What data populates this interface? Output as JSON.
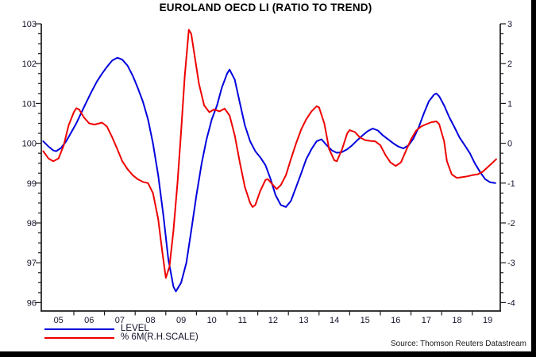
{
  "chart_data": {
    "type": "line",
    "title": "EUROLAND OECD LI (RATIO TO TREND)",
    "grid": false,
    "legend_position": "bottom-left",
    "x_axis": {
      "labels": [
        "05",
        "06",
        "07",
        "08",
        "09",
        "10",
        "11",
        "12",
        "13",
        "14",
        "15",
        "16",
        "17",
        "18",
        "19"
      ],
      "first_year": 2005,
      "boundary_ticks": [
        2006,
        2007,
        2008,
        2009,
        2010,
        2011,
        2012,
        2013,
        2014,
        2015,
        2016,
        2017,
        2018,
        2019
      ]
    },
    "left_axis": {
      "min": 96,
      "max": 103,
      "major_step": 1,
      "minor_step": 0.25,
      "labels": [
        "103",
        "102",
        "101",
        "100",
        "99",
        "98",
        "97",
        "96"
      ]
    },
    "right_axis": {
      "min": -4,
      "max": 3,
      "major_step": 1,
      "minor_step": 0.25,
      "labels": [
        "3",
        "2",
        "1",
        "0",
        "-1",
        "-2",
        "-3",
        "-4"
      ]
    },
    "series": [
      {
        "name": "LEVEL",
        "axis": "left",
        "color": "#0000dd",
        "points": [
          [
            2005.0,
            100.05
          ],
          [
            2005.17,
            99.92
          ],
          [
            2005.33,
            99.82
          ],
          [
            2005.42,
            99.8
          ],
          [
            2005.58,
            99.88
          ],
          [
            2005.75,
            100.05
          ],
          [
            2005.92,
            100.28
          ],
          [
            2006.08,
            100.5
          ],
          [
            2006.25,
            100.78
          ],
          [
            2006.42,
            101.05
          ],
          [
            2006.58,
            101.3
          ],
          [
            2006.75,
            101.55
          ],
          [
            2006.92,
            101.75
          ],
          [
            2007.08,
            101.92
          ],
          [
            2007.25,
            102.08
          ],
          [
            2007.42,
            102.15
          ],
          [
            2007.58,
            102.1
          ],
          [
            2007.75,
            101.95
          ],
          [
            2007.92,
            101.7
          ],
          [
            2008.08,
            101.4
          ],
          [
            2008.25,
            101.05
          ],
          [
            2008.42,
            100.6
          ],
          [
            2008.58,
            100.0
          ],
          [
            2008.75,
            99.2
          ],
          [
            2008.92,
            98.2
          ],
          [
            2009.08,
            97.1
          ],
          [
            2009.25,
            96.4
          ],
          [
            2009.33,
            96.28
          ],
          [
            2009.5,
            96.5
          ],
          [
            2009.67,
            97.0
          ],
          [
            2009.83,
            97.8
          ],
          [
            2010.0,
            98.7
          ],
          [
            2010.17,
            99.5
          ],
          [
            2010.33,
            100.1
          ],
          [
            2010.5,
            100.6
          ],
          [
            2010.67,
            100.95
          ],
          [
            2010.83,
            101.4
          ],
          [
            2011.0,
            101.75
          ],
          [
            2011.08,
            101.85
          ],
          [
            2011.25,
            101.6
          ],
          [
            2011.42,
            101.0
          ],
          [
            2011.58,
            100.45
          ],
          [
            2011.75,
            100.05
          ],
          [
            2011.92,
            99.8
          ],
          [
            2012.08,
            99.65
          ],
          [
            2012.25,
            99.45
          ],
          [
            2012.42,
            99.1
          ],
          [
            2012.58,
            98.7
          ],
          [
            2012.75,
            98.45
          ],
          [
            2012.92,
            98.4
          ],
          [
            2013.08,
            98.55
          ],
          [
            2013.25,
            98.9
          ],
          [
            2013.42,
            99.25
          ],
          [
            2013.58,
            99.6
          ],
          [
            2013.75,
            99.85
          ],
          [
            2013.92,
            100.05
          ],
          [
            2014.08,
            100.1
          ],
          [
            2014.25,
            99.95
          ],
          [
            2014.42,
            99.82
          ],
          [
            2014.58,
            99.76
          ],
          [
            2014.75,
            99.78
          ],
          [
            2014.92,
            99.85
          ],
          [
            2015.08,
            99.95
          ],
          [
            2015.25,
            100.08
          ],
          [
            2015.42,
            100.2
          ],
          [
            2015.58,
            100.3
          ],
          [
            2015.75,
            100.37
          ],
          [
            2015.92,
            100.32
          ],
          [
            2016.08,
            100.2
          ],
          [
            2016.25,
            100.1
          ],
          [
            2016.42,
            100.0
          ],
          [
            2016.58,
            99.92
          ],
          [
            2016.75,
            99.87
          ],
          [
            2016.92,
            99.95
          ],
          [
            2017.08,
            100.12
          ],
          [
            2017.25,
            100.4
          ],
          [
            2017.42,
            100.75
          ],
          [
            2017.58,
            101.05
          ],
          [
            2017.75,
            101.22
          ],
          [
            2017.83,
            101.25
          ],
          [
            2017.92,
            101.18
          ],
          [
            2018.08,
            100.95
          ],
          [
            2018.25,
            100.65
          ],
          [
            2018.42,
            100.4
          ],
          [
            2018.58,
            100.15
          ],
          [
            2018.75,
            99.95
          ],
          [
            2018.92,
            99.75
          ],
          [
            2019.08,
            99.5
          ],
          [
            2019.25,
            99.28
          ],
          [
            2019.42,
            99.1
          ],
          [
            2019.58,
            99.02
          ],
          [
            2019.75,
            99.0
          ]
        ]
      },
      {
        "name": "% 6M(R.H.SCALE)",
        "axis": "right",
        "color": "#ee0000",
        "points": [
          [
            2005.0,
            -0.2
          ],
          [
            2005.17,
            -0.38
          ],
          [
            2005.33,
            -0.45
          ],
          [
            2005.5,
            -0.38
          ],
          [
            2005.67,
            -0.05
          ],
          [
            2005.83,
            0.45
          ],
          [
            2006.0,
            0.78
          ],
          [
            2006.08,
            0.88
          ],
          [
            2006.17,
            0.85
          ],
          [
            2006.33,
            0.65
          ],
          [
            2006.5,
            0.5
          ],
          [
            2006.67,
            0.47
          ],
          [
            2006.83,
            0.5
          ],
          [
            2006.92,
            0.52
          ],
          [
            2007.08,
            0.42
          ],
          [
            2007.25,
            0.15
          ],
          [
            2007.42,
            -0.15
          ],
          [
            2007.58,
            -0.45
          ],
          [
            2007.75,
            -0.65
          ],
          [
            2007.92,
            -0.8
          ],
          [
            2008.08,
            -0.9
          ],
          [
            2008.25,
            -0.97
          ],
          [
            2008.42,
            -1.0
          ],
          [
            2008.58,
            -1.25
          ],
          [
            2008.75,
            -1.9
          ],
          [
            2008.88,
            -2.7
          ],
          [
            2009.0,
            -3.38
          ],
          [
            2009.12,
            -3.1
          ],
          [
            2009.25,
            -2.2
          ],
          [
            2009.38,
            -1.0
          ],
          [
            2009.5,
            0.3
          ],
          [
            2009.62,
            1.7
          ],
          [
            2009.75,
            2.85
          ],
          [
            2009.83,
            2.75
          ],
          [
            2009.92,
            2.3
          ],
          [
            2010.08,
            1.5
          ],
          [
            2010.25,
            0.95
          ],
          [
            2010.42,
            0.78
          ],
          [
            2010.58,
            0.85
          ],
          [
            2010.75,
            0.8
          ],
          [
            2010.92,
            0.87
          ],
          [
            2011.08,
            0.7
          ],
          [
            2011.25,
            0.2
          ],
          [
            2011.42,
            -0.5
          ],
          [
            2011.58,
            -1.1
          ],
          [
            2011.75,
            -1.5
          ],
          [
            2011.83,
            -1.6
          ],
          [
            2011.92,
            -1.55
          ],
          [
            2012.08,
            -1.2
          ],
          [
            2012.25,
            -0.92
          ],
          [
            2012.33,
            -0.9
          ],
          [
            2012.5,
            -1.05
          ],
          [
            2012.62,
            -1.15
          ],
          [
            2012.75,
            -1.05
          ],
          [
            2012.92,
            -0.8
          ],
          [
            2013.08,
            -0.4
          ],
          [
            2013.25,
            0.0
          ],
          [
            2013.42,
            0.35
          ],
          [
            2013.58,
            0.6
          ],
          [
            2013.75,
            0.8
          ],
          [
            2013.92,
            0.93
          ],
          [
            2014.0,
            0.9
          ],
          [
            2014.17,
            0.5
          ],
          [
            2014.33,
            -0.15
          ],
          [
            2014.5,
            -0.43
          ],
          [
            2014.58,
            -0.45
          ],
          [
            2014.75,
            -0.15
          ],
          [
            2014.92,
            0.25
          ],
          [
            2015.0,
            0.33
          ],
          [
            2015.17,
            0.28
          ],
          [
            2015.33,
            0.15
          ],
          [
            2015.5,
            0.08
          ],
          [
            2015.67,
            0.06
          ],
          [
            2015.83,
            0.05
          ],
          [
            2016.0,
            -0.05
          ],
          [
            2016.17,
            -0.3
          ],
          [
            2016.33,
            -0.48
          ],
          [
            2016.5,
            -0.57
          ],
          [
            2016.67,
            -0.48
          ],
          [
            2016.83,
            -0.2
          ],
          [
            2017.0,
            0.1
          ],
          [
            2017.17,
            0.32
          ],
          [
            2017.33,
            0.42
          ],
          [
            2017.5,
            0.48
          ],
          [
            2017.67,
            0.53
          ],
          [
            2017.83,
            0.55
          ],
          [
            2017.92,
            0.48
          ],
          [
            2018.08,
            0.05
          ],
          [
            2018.17,
            -0.45
          ],
          [
            2018.33,
            -0.78
          ],
          [
            2018.5,
            -0.87
          ],
          [
            2018.67,
            -0.85
          ],
          [
            2018.83,
            -0.83
          ],
          [
            2019.0,
            -0.8
          ],
          [
            2019.17,
            -0.78
          ],
          [
            2019.33,
            -0.72
          ],
          [
            2019.5,
            -0.6
          ],
          [
            2019.67,
            -0.48
          ],
          [
            2019.78,
            -0.4
          ]
        ]
      }
    ]
  },
  "footer": {
    "source": "Source: Thomson Reuters Datastream"
  }
}
